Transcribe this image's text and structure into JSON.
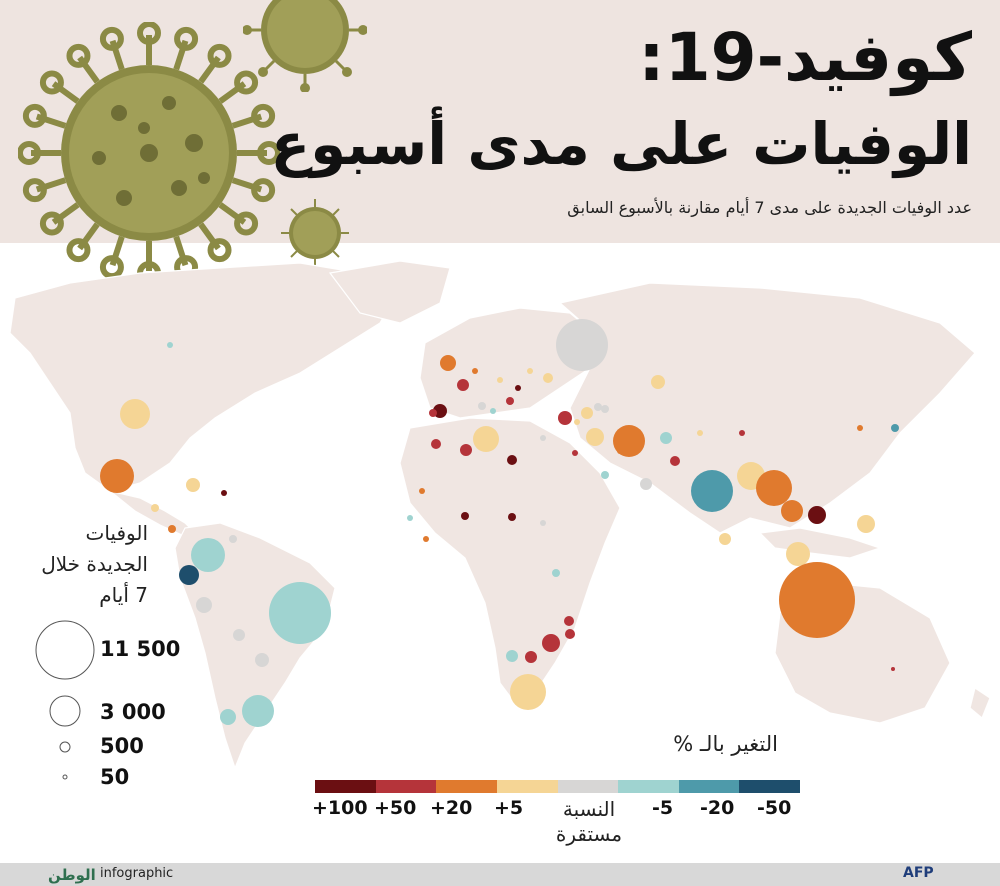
{
  "title": {
    "line1": "كوفيد-19:",
    "line2": "الوفيات على مدى أسبوع"
  },
  "subtitle": "عدد الوفيات الجديدة على مدى 7 أيام مقارنة بالأسبوع السابق",
  "size_legend": {
    "title": "الوفيات الجديدة خلال 7 أيام",
    "items": [
      {
        "value": "11 500"
      },
      {
        "value": "3 000"
      },
      {
        "value": "500"
      },
      {
        "value": "50"
      }
    ]
  },
  "change_legend": {
    "title": "التغير بالـ %",
    "stable_label": "النسبة مستقرة",
    "labels": [
      "+100",
      "+50",
      "+20",
      "+5",
      "-5",
      "-20",
      "-50"
    ],
    "colors": [
      "#6b0f12",
      "#b5343a",
      "#e07a2e",
      "#f5d595",
      "#d7d6d5",
      "#9fd3d0",
      "#4e9aaa",
      "#1e4e6c"
    ]
  },
  "colors": {
    "header_bg": "#eee4e0",
    "land": "#f0e6e2",
    "virus": "#8b8a45"
  },
  "footer": {
    "brand": "الوطن",
    "section": "infographic",
    "agency": "AFP"
  }
}
